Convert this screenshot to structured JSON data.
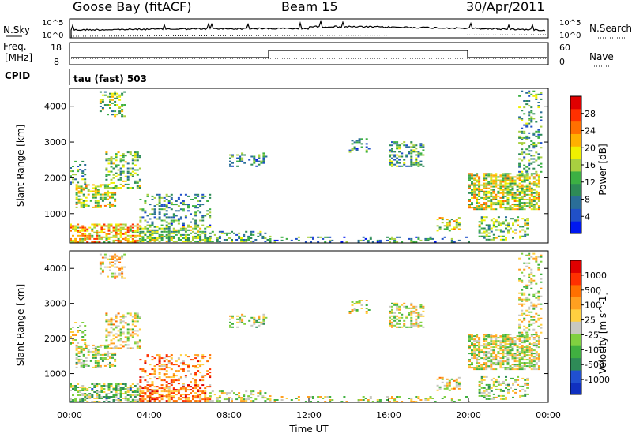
{
  "header": {
    "station": "Goose Bay (fitACF)",
    "beam": "Beam 15",
    "date": "30/Apr/2011"
  },
  "status_panels": {
    "nsky_label": "N.Sky",
    "nsky_ticks": [
      "10^5",
      "10^0"
    ],
    "nsearch_label": "N.Search",
    "nsearch_ticks": [
      "10^5",
      "10^0"
    ],
    "freq_label": "Freq.",
    "freq_unit": "[MHz]",
    "freq_ticks": [
      "18",
      "8"
    ],
    "nave_label": "Nave",
    "nave_ticks": [
      "60",
      "0"
    ],
    "cpid_label": "CPID",
    "cpid_text": "tau (fast) 503"
  },
  "chart_data": [
    {
      "type": "heatmap",
      "panel": "power",
      "ylabel": "Slant Range [km]",
      "yticks": [
        "4000",
        "3000",
        "2000",
        "1000"
      ],
      "ylim": [
        180,
        4500
      ],
      "xlim": [
        0,
        24
      ],
      "colorbar": {
        "label": "Power [dB]",
        "ticks": [
          "28",
          "24",
          "20",
          "16",
          "12",
          "8",
          "4"
        ],
        "colors": [
          "#0018f0",
          "#2050c8",
          "#2a6e98",
          "#2e8b57",
          "#3cb043",
          "#a8d040",
          "#f0f000",
          "#ffb000",
          "#ff7000",
          "#ff3000",
          "#e00000"
        ]
      }
    },
    {
      "type": "heatmap",
      "panel": "velocity",
      "ylabel": "Slant Range [km]",
      "yticks": [
        "4000",
        "3000",
        "2000",
        "1000"
      ],
      "ylim": [
        180,
        4500
      ],
      "xlim": [
        0,
        24
      ],
      "xticks": [
        "00:00",
        "04:00",
        "08:00",
        "12:00",
        "16:00",
        "20:00",
        "00:00"
      ],
      "xlabel": "Time UT",
      "colorbar": {
        "label": "Velocity [m s^-1]",
        "ticks": [
          "1000",
          "500",
          "100",
          "25",
          "-25",
          "-100",
          "-500",
          "-1000"
        ],
        "colors": [
          "#1030c0",
          "#2050d0",
          "#2e8b57",
          "#40b040",
          "#80d040",
          "#c8c8c0",
          "#ffd040",
          "#ffa020",
          "#ff7000",
          "#ff3000",
          "#e00000"
        ]
      }
    }
  ]
}
